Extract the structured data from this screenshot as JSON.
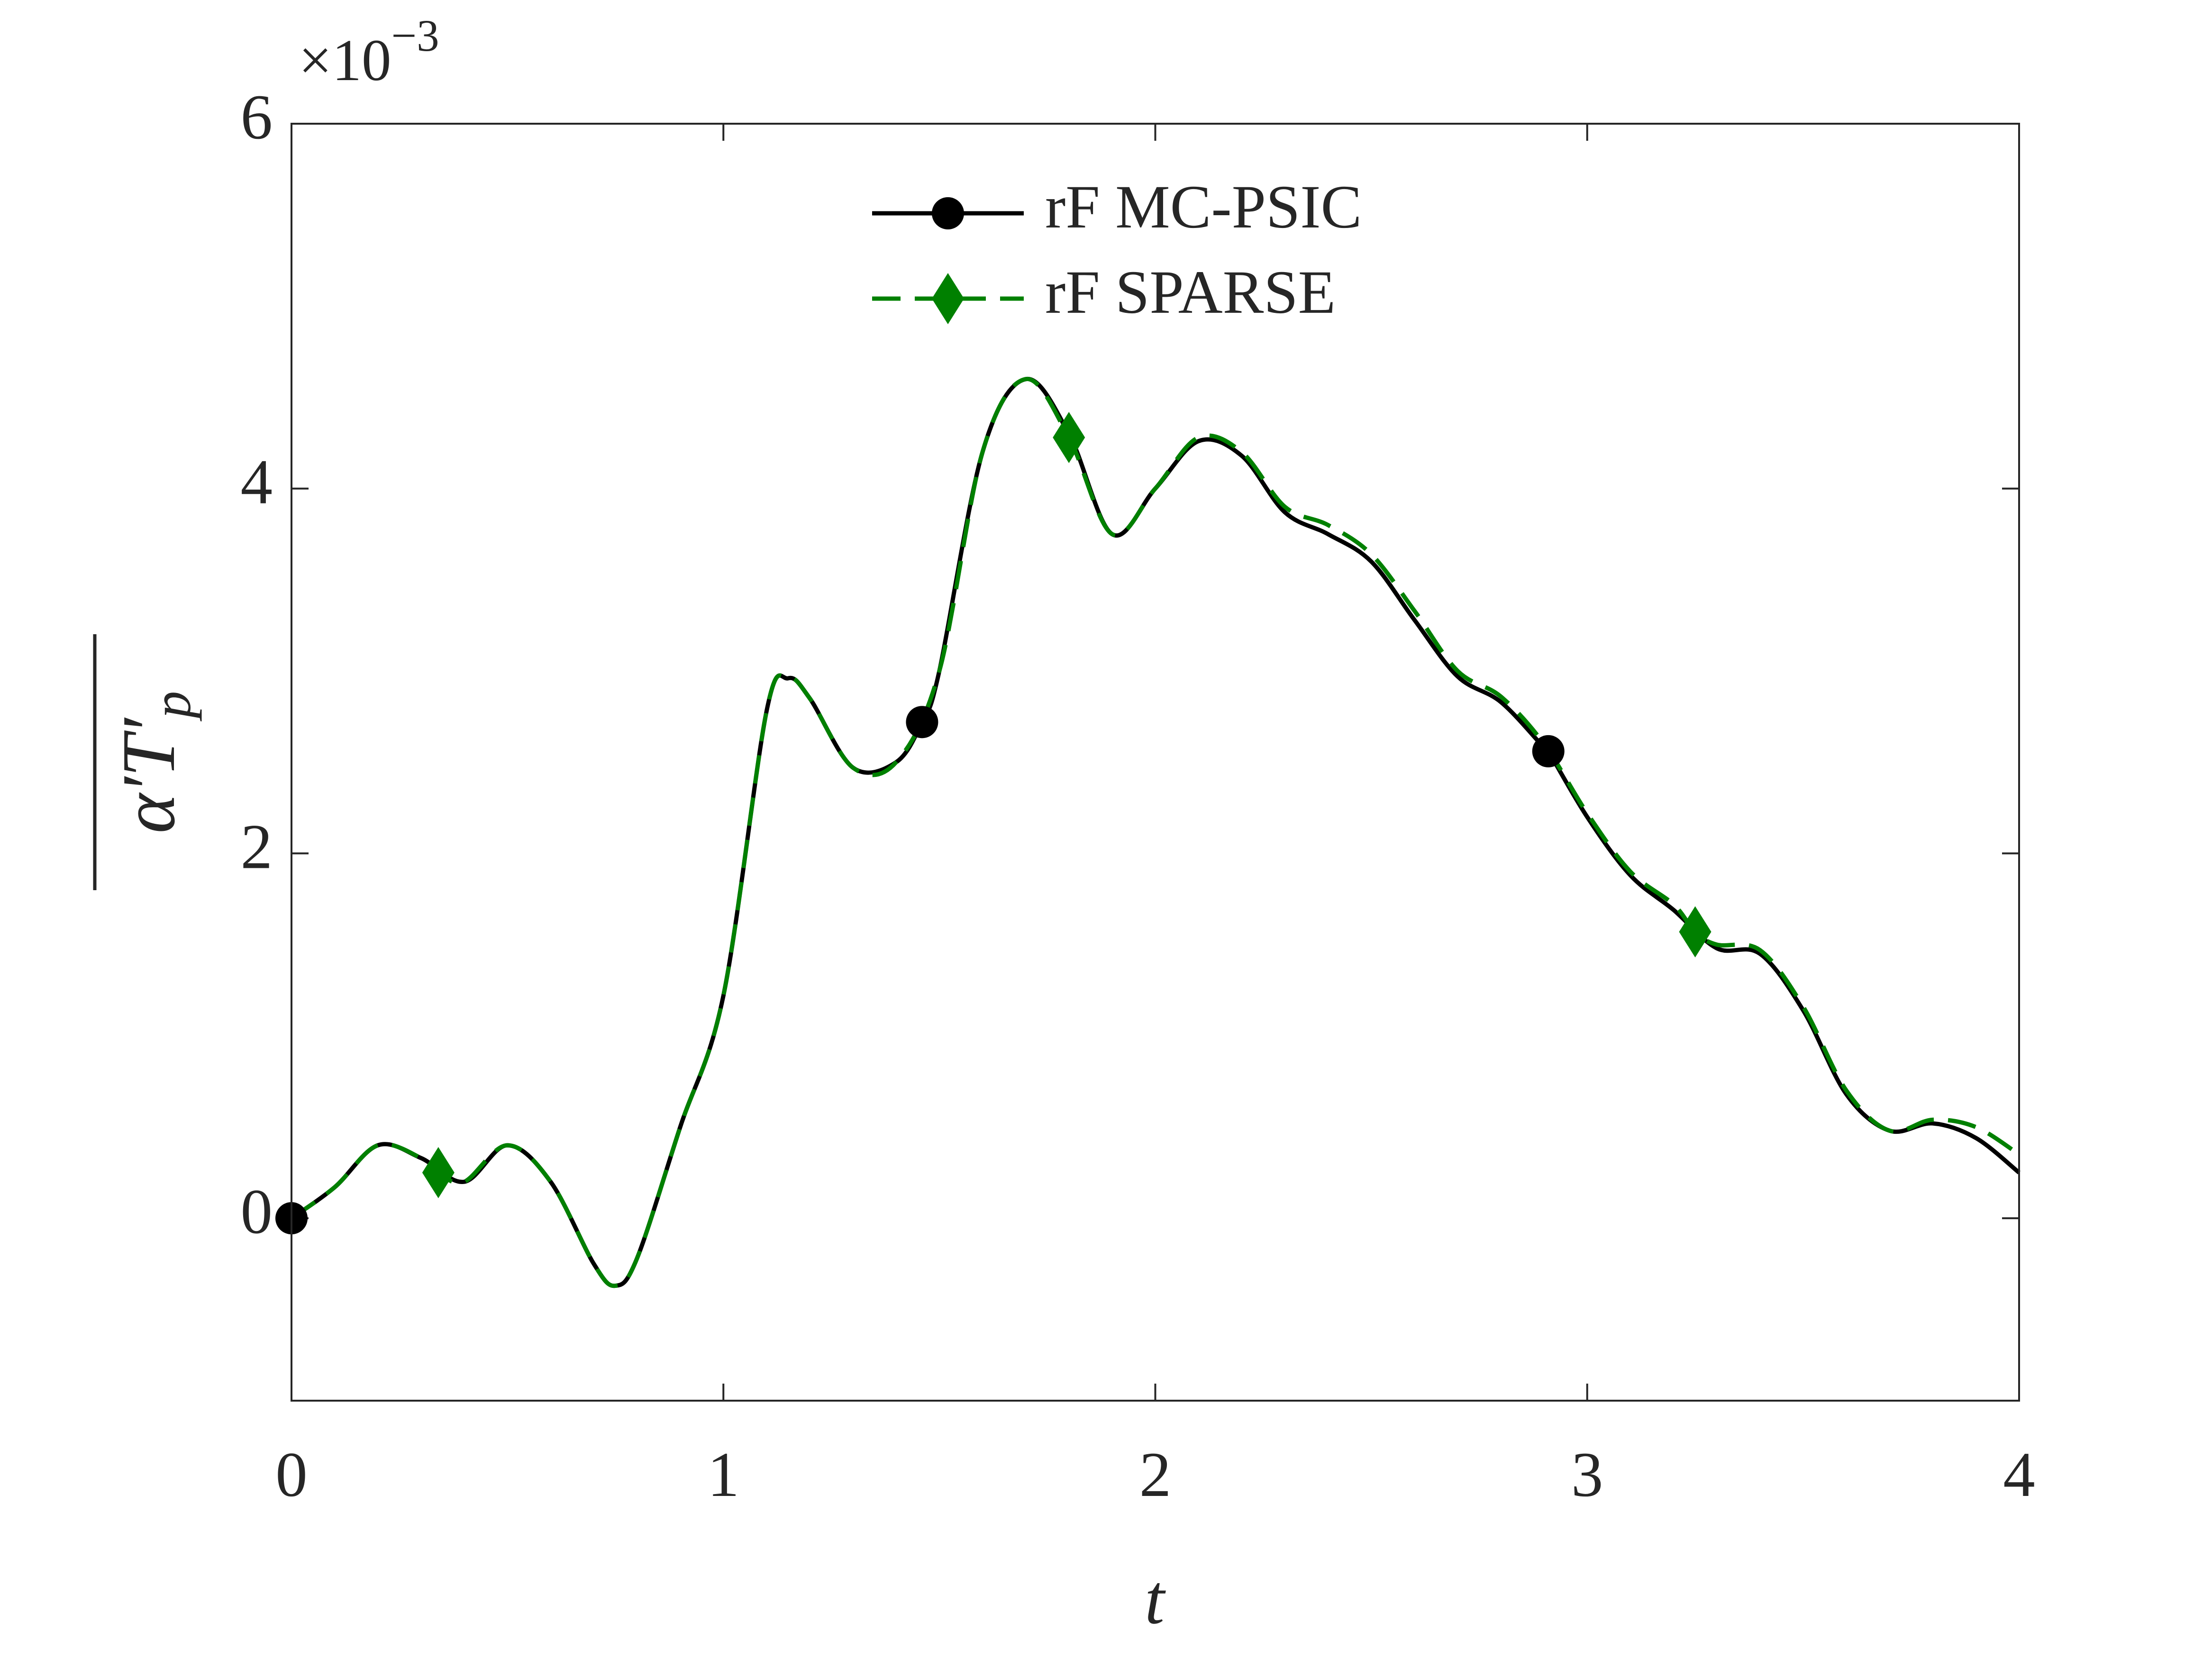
{
  "chart_data": {
    "type": "line",
    "xlabel": "t",
    "ylabel": [
      "α′T′",
      "p"
    ],
    "axis_multiplier": {
      "base": "×10",
      "exponent": "−3"
    },
    "xlim": [
      0,
      4
    ],
    "xticks": [
      0,
      1,
      2,
      3,
      4
    ],
    "ylim": [
      -1,
      6
    ],
    "yticks": [
      0,
      2,
      4,
      6
    ],
    "legend": "top",
    "series": [
      {
        "name": "rF MC-PSIC",
        "color": "#000000",
        "line_style": "solid",
        "marker": "circle",
        "marker_indices": [
          0,
          17,
          33
        ],
        "x": [
          0,
          0.1,
          0.2,
          0.3,
          0.4,
          0.5,
          0.6,
          0.7,
          0.75,
          0.8,
          0.9,
          1.0,
          1.1,
          1.15,
          1.2,
          1.3,
          1.4,
          1.46,
          1.5,
          1.6,
          1.7,
          1.8,
          1.9,
          2.0,
          2.1,
          2.2,
          2.3,
          2.4,
          2.5,
          2.6,
          2.7,
          2.8,
          2.9,
          2.91,
          3.0,
          3.1,
          3.2,
          3.3,
          3.4,
          3.5,
          3.6,
          3.7,
          3.8,
          3.9,
          4.0
        ],
        "values": [
          0,
          0.17,
          0.4,
          0.33,
          0.2,
          0.4,
          0.2,
          -0.25,
          -0.37,
          -0.22,
          0.5,
          1.22,
          2.78,
          2.96,
          2.85,
          2.47,
          2.5,
          2.72,
          3.0,
          4.2,
          4.6,
          4.3,
          3.75,
          4.0,
          4.26,
          4.18,
          3.87,
          3.75,
          3.6,
          3.28,
          2.97,
          2.83,
          2.58,
          2.56,
          2.2,
          1.88,
          1.69,
          1.48,
          1.45,
          1.14,
          0.68,
          0.48,
          0.52,
          0.44,
          0.25
        ]
      },
      {
        "name": "rF SPARSE",
        "color": "#008000",
        "line_style": "dashed",
        "marker": "diamond",
        "marker_indices": [
          4,
          21,
          36
        ],
        "x": [
          0,
          0.1,
          0.2,
          0.3,
          0.34,
          0.4,
          0.5,
          0.6,
          0.7,
          0.75,
          0.8,
          0.9,
          1.0,
          1.1,
          1.15,
          1.2,
          1.3,
          1.4,
          1.5,
          1.6,
          1.7,
          1.8,
          1.9,
          2.0,
          2.1,
          2.2,
          2.3,
          2.4,
          2.5,
          2.6,
          2.7,
          2.8,
          2.9,
          3.0,
          3.1,
          3.2,
          3.25,
          3.3,
          3.4,
          3.5,
          3.6,
          3.7,
          3.8,
          3.9,
          4.0
        ],
        "values": [
          0,
          0.17,
          0.4,
          0.33,
          0.25,
          0.2,
          0.4,
          0.2,
          -0.25,
          -0.37,
          -0.22,
          0.5,
          1.22,
          2.78,
          2.96,
          2.85,
          2.47,
          2.5,
          3.0,
          4.2,
          4.6,
          4.28,
          3.75,
          4.0,
          4.28,
          4.2,
          3.9,
          3.8,
          3.64,
          3.33,
          3.0,
          2.86,
          2.6,
          2.22,
          1.9,
          1.72,
          1.57,
          1.5,
          1.47,
          1.16,
          0.7,
          0.48,
          0.54,
          0.5,
          0.35
        ]
      }
    ]
  }
}
